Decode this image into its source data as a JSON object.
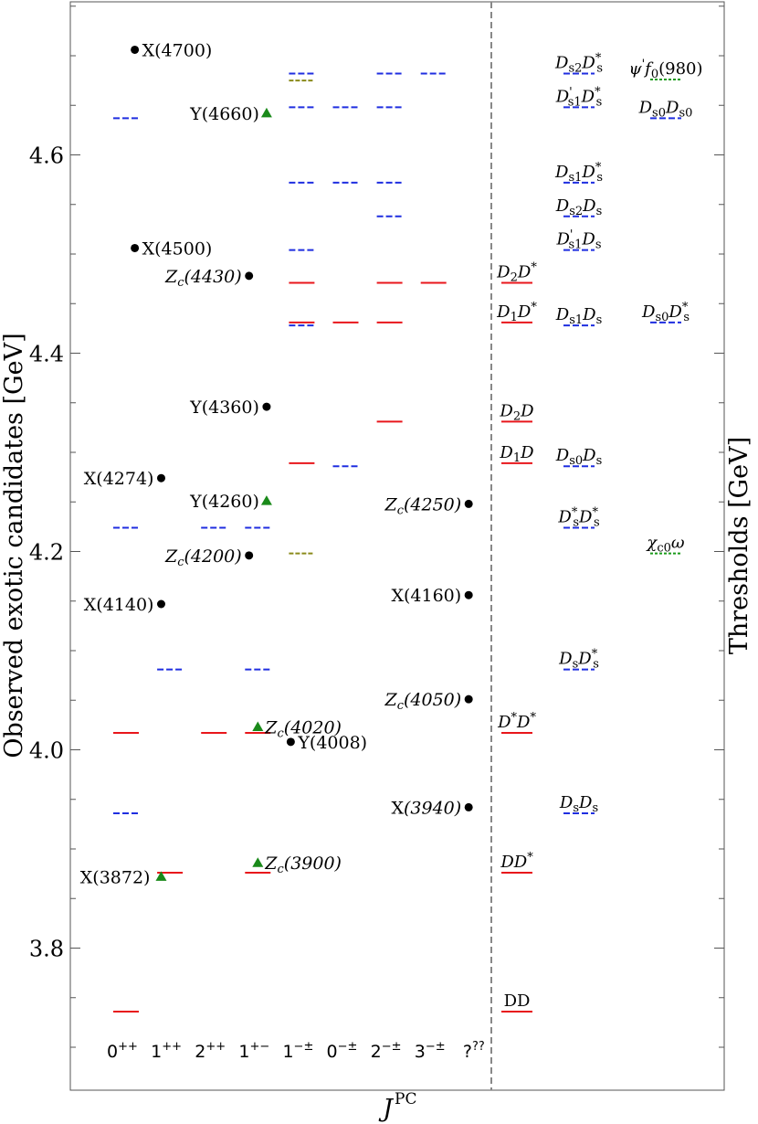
{
  "chart_data": {
    "type": "scatter",
    "title": "",
    "xlabel": "J",
    "xlabel_sup": "PC",
    "ylabel": "Observed exotic candidates [GeV]",
    "ylabel_right": "Thresholds [GeV]",
    "ylim": [
      3.68,
      4.755
    ],
    "yticks": [
      {
        "value": 3.8,
        "label": "3.8"
      },
      {
        "value": 4.0,
        "label": "4.0"
      },
      {
        "value": 4.2,
        "label": "4.2"
      },
      {
        "value": 4.4,
        "label": "4.4"
      },
      {
        "value": 4.6,
        "label": "4.6"
      }
    ],
    "categories": [
      {
        "label": "0",
        "sup": "++"
      },
      {
        "label": "1",
        "sup": "++"
      },
      {
        "label": "2",
        "sup": "++"
      },
      {
        "label": "1",
        "sup": "+−"
      },
      {
        "label": "1",
        "sup": "−±"
      },
      {
        "label": "0",
        "sup": "−±"
      },
      {
        "label": "2",
        "sup": "−±"
      },
      {
        "label": "3",
        "sup": "−±"
      },
      {
        "label": "?",
        "sup": "??"
      }
    ],
    "grid": false,
    "legend": "none",
    "colors": {
      "red_level": "#e8161b",
      "blue_level": "#1f2ee0",
      "olive_level": "#8a8a1a",
      "green_level": "#1a9a1a",
      "black_point": "#000000",
      "green_triangle": "#1a8a1a",
      "divider": "#888888"
    },
    "predicted_levels": [
      {
        "col": 0,
        "y": 4.637,
        "style": "blue"
      },
      {
        "col": 0,
        "y": 4.224,
        "style": "blue"
      },
      {
        "col": 0,
        "y": 4.017,
        "style": "red"
      },
      {
        "col": 0,
        "y": 3.936,
        "style": "blue"
      },
      {
        "col": 0,
        "y": 3.736,
        "style": "red"
      },
      {
        "col": 1,
        "y": 4.081,
        "style": "blue"
      },
      {
        "col": 1,
        "y": 3.876,
        "style": "red"
      },
      {
        "col": 2,
        "y": 4.224,
        "style": "blue"
      },
      {
        "col": 2,
        "y": 4.017,
        "style": "red"
      },
      {
        "col": 3,
        "y": 4.224,
        "style": "blue"
      },
      {
        "col": 3,
        "y": 4.081,
        "style": "blue"
      },
      {
        "col": 3,
        "y": 4.017,
        "style": "red"
      },
      {
        "col": 3,
        "y": 3.876,
        "style": "red"
      },
      {
        "col": 4,
        "y": 4.682,
        "style": "blue"
      },
      {
        "col": 4,
        "y": 4.675,
        "style": "olive"
      },
      {
        "col": 4,
        "y": 4.648,
        "style": "blue"
      },
      {
        "col": 4,
        "y": 4.572,
        "style": "blue"
      },
      {
        "col": 4,
        "y": 4.504,
        "style": "blue"
      },
      {
        "col": 4,
        "y": 4.471,
        "style": "red"
      },
      {
        "col": 4,
        "y": 4.431,
        "style": "red"
      },
      {
        "col": 4,
        "y": 4.428,
        "style": "blue"
      },
      {
        "col": 4,
        "y": 4.289,
        "style": "red"
      },
      {
        "col": 4,
        "y": 4.198,
        "style": "olive"
      },
      {
        "col": 5,
        "y": 4.648,
        "style": "blue"
      },
      {
        "col": 5,
        "y": 4.572,
        "style": "blue"
      },
      {
        "col": 5,
        "y": 4.431,
        "style": "red"
      },
      {
        "col": 5,
        "y": 4.286,
        "style": "blue"
      },
      {
        "col": 6,
        "y": 4.682,
        "style": "blue"
      },
      {
        "col": 6,
        "y": 4.648,
        "style": "blue"
      },
      {
        "col": 6,
        "y": 4.572,
        "style": "blue"
      },
      {
        "col": 6,
        "y": 4.538,
        "style": "blue"
      },
      {
        "col": 6,
        "y": 4.471,
        "style": "red"
      },
      {
        "col": 6,
        "y": 4.431,
        "style": "red"
      },
      {
        "col": 6,
        "y": 4.331,
        "style": "red"
      },
      {
        "col": 7,
        "y": 4.682,
        "style": "blue"
      },
      {
        "col": 7,
        "y": 4.471,
        "style": "red"
      }
    ],
    "observed_states": [
      {
        "col": 0.2,
        "y": 4.706,
        "marker": "circle",
        "color": "black",
        "name": "X(4700)",
        "side": "right",
        "italic_paren": false
      },
      {
        "col": 0.2,
        "y": 4.506,
        "marker": "circle",
        "color": "black",
        "name": "X(4500)",
        "side": "right",
        "italic_paren": false
      },
      {
        "col": 0.8,
        "y": 4.274,
        "marker": "circle",
        "color": "black",
        "name": "X(4274)",
        "side": "left",
        "italic_paren": false
      },
      {
        "col": 0.8,
        "y": 4.147,
        "marker": "circle",
        "color": "black",
        "name": "X(4140)",
        "side": "left",
        "italic_paren": false
      },
      {
        "col": 0.8,
        "y": 3.872,
        "marker": "triangle",
        "color": "green",
        "name": "X(3872)",
        "side": "left-far",
        "italic_paren": false
      },
      {
        "col": 3.2,
        "y": 4.642,
        "marker": "triangle",
        "color": "green",
        "name": "Y(4660)",
        "side": "left",
        "italic_paren": false
      },
      {
        "col": 2.8,
        "y": 4.478,
        "marker": "circle",
        "color": "black",
        "name": "Zc(4430)",
        "side": "left",
        "italic_paren": true
      },
      {
        "col": 3.2,
        "y": 4.346,
        "marker": "circle",
        "color": "black",
        "name": "Y(4360)",
        "side": "left",
        "italic_paren": false
      },
      {
        "col": 3.2,
        "y": 4.251,
        "marker": "triangle",
        "color": "green",
        "name": "Y(4260)",
        "side": "left",
        "italic_paren": false
      },
      {
        "col": 2.8,
        "y": 4.196,
        "marker": "circle",
        "color": "black",
        "name": "Zc(4200)",
        "side": "left",
        "italic_paren": true
      },
      {
        "col": 3.0,
        "y": 4.023,
        "marker": "triangle",
        "color": "green",
        "name": "Zc(4020)",
        "side": "right",
        "italic_paren": true
      },
      {
        "col": 3.75,
        "y": 4.008,
        "marker": "circle",
        "color": "black",
        "name": "Y(4008)",
        "side": "right",
        "italic_paren": false
      },
      {
        "col": 3.0,
        "y": 3.886,
        "marker": "triangle",
        "color": "green",
        "name": "Zc(3900)",
        "side": "right",
        "italic_paren": true
      },
      {
        "col": 7.8,
        "y": 4.248,
        "marker": "circle",
        "color": "black",
        "name": "Zc(4250)",
        "side": "left",
        "italic_paren": true
      },
      {
        "col": 7.8,
        "y": 4.156,
        "marker": "circle",
        "color": "black",
        "name": "X(4160)",
        "side": "left",
        "italic_paren": false
      },
      {
        "col": 7.8,
        "y": 4.051,
        "marker": "circle",
        "color": "black",
        "name": "Zc(4050)",
        "side": "left",
        "italic_paren": true
      },
      {
        "col": 7.8,
        "y": 3.942,
        "marker": "circle",
        "color": "black",
        "name": "X(3940)",
        "side": "left",
        "italic_paren": true
      }
    ],
    "thresholds": [
      {
        "group": 0,
        "y": 3.736,
        "style": "red",
        "label": "DD",
        "base": "D",
        "sub": "",
        "sup": "",
        "base2": "D",
        "sub2": "",
        "sup2": ""
      },
      {
        "group": 0,
        "y": 3.876,
        "style": "red",
        "label": "DD*",
        "base": "D",
        "sub": "",
        "sup": "",
        "base2": "D",
        "sub2": "",
        "sup2": "*"
      },
      {
        "group": 0,
        "y": 4.017,
        "style": "red",
        "label": "D*D*",
        "base": "D",
        "sub": "",
        "sup": "*",
        "base2": "D",
        "sub2": "",
        "sup2": "*"
      },
      {
        "group": 0,
        "y": 4.289,
        "style": "red",
        "label": "D1D",
        "base": "D",
        "sub": "1",
        "sup": "",
        "base2": "D",
        "sub2": "",
        "sup2": ""
      },
      {
        "group": 0,
        "y": 4.331,
        "style": "red",
        "label": "D2D",
        "base": "D",
        "sub": "2",
        "sup": "",
        "base2": "D",
        "sub2": "",
        "sup2": ""
      },
      {
        "group": 0,
        "y": 4.431,
        "style": "red",
        "label": "D1D*",
        "base": "D",
        "sub": "1",
        "sup": "",
        "base2": "D",
        "sub2": "",
        "sup2": "*"
      },
      {
        "group": 0,
        "y": 4.471,
        "style": "red",
        "label": "D2D*",
        "base": "D",
        "sub": "2",
        "sup": "",
        "base2": "D",
        "sub2": "",
        "sup2": "*"
      },
      {
        "group": 1,
        "y": 3.936,
        "style": "blue",
        "label": "DsDs",
        "base": "D",
        "sub": "s",
        "sup": "",
        "base2": "D",
        "sub2": "s",
        "sup2": ""
      },
      {
        "group": 1,
        "y": 4.081,
        "style": "blue",
        "label": "DsDs*",
        "base": "D",
        "sub": "s",
        "sup": "",
        "base2": "D",
        "sub2": "s",
        "sup2": "*"
      },
      {
        "group": 1,
        "y": 4.224,
        "style": "blue",
        "label": "Ds*Ds*",
        "base": "D",
        "sub": "s",
        "sup": "*",
        "base2": "D",
        "sub2": "s",
        "sup2": "*"
      },
      {
        "group": 1,
        "y": 4.286,
        "style": "blue",
        "label": "Ds0Ds",
        "base": "D",
        "sub": "s0",
        "sup": "",
        "base2": "D",
        "sub2": "s",
        "sup2": ""
      },
      {
        "group": 1,
        "y": 4.428,
        "style": "blue",
        "label": "Ds1Ds",
        "base": "D",
        "sub": "s1",
        "sup": "",
        "base2": "D",
        "sub2": "s",
        "sup2": ""
      },
      {
        "group": 1,
        "y": 4.504,
        "style": "blue",
        "label": "D's1Ds",
        "base": "D",
        "sub": "s1",
        "sup": "'",
        "base2": "D",
        "sub2": "s",
        "sup2": ""
      },
      {
        "group": 1,
        "y": 4.538,
        "style": "blue",
        "label": "Ds2Ds",
        "base": "D",
        "sub": "s2",
        "sup": "",
        "base2": "D",
        "sub2": "s",
        "sup2": ""
      },
      {
        "group": 1,
        "y": 4.572,
        "style": "blue",
        "label": "Ds1Ds*",
        "base": "D",
        "sub": "s1",
        "sup": "",
        "base2": "D",
        "sub2": "s",
        "sup2": "*"
      },
      {
        "group": 1,
        "y": 4.648,
        "style": "blue",
        "label": "D's1Ds*",
        "base": "D",
        "sub": "s1",
        "sup": "'",
        "base2": "D",
        "sub2": "s",
        "sup2": "*"
      },
      {
        "group": 1,
        "y": 4.682,
        "style": "blue",
        "label": "Ds2Ds*",
        "base": "D",
        "sub": "s2",
        "sup": "",
        "base2": "D",
        "sub2": "s",
        "sup2": "*"
      },
      {
        "group": 2,
        "y": 4.198,
        "style": "green",
        "label": "χc0ω",
        "base": "χ",
        "sub": "c0",
        "sup": "",
        "base2": "ω",
        "sub2": "",
        "sup2": ""
      },
      {
        "group": 2,
        "y": 4.431,
        "style": "blue",
        "label": "Ds0Ds*",
        "base": "D",
        "sub": "s0",
        "sup": "",
        "base2": "D",
        "sub2": "s",
        "sup2": "*"
      },
      {
        "group": 2,
        "y": 4.637,
        "style": "blue",
        "label": "Ds0Ds0",
        "base": "D",
        "sub": "s0",
        "sup": "",
        "base2": "D",
        "sub2": "s0",
        "sup2": ""
      },
      {
        "group": 2,
        "y": 4.676,
        "style": "green",
        "label": "ψ'f0(980)",
        "base": "ψ",
        "sub": "",
        "sup": "'",
        "base2": "f",
        "sub2": "0",
        "sup2": "",
        "tail": "(980)"
      }
    ]
  }
}
